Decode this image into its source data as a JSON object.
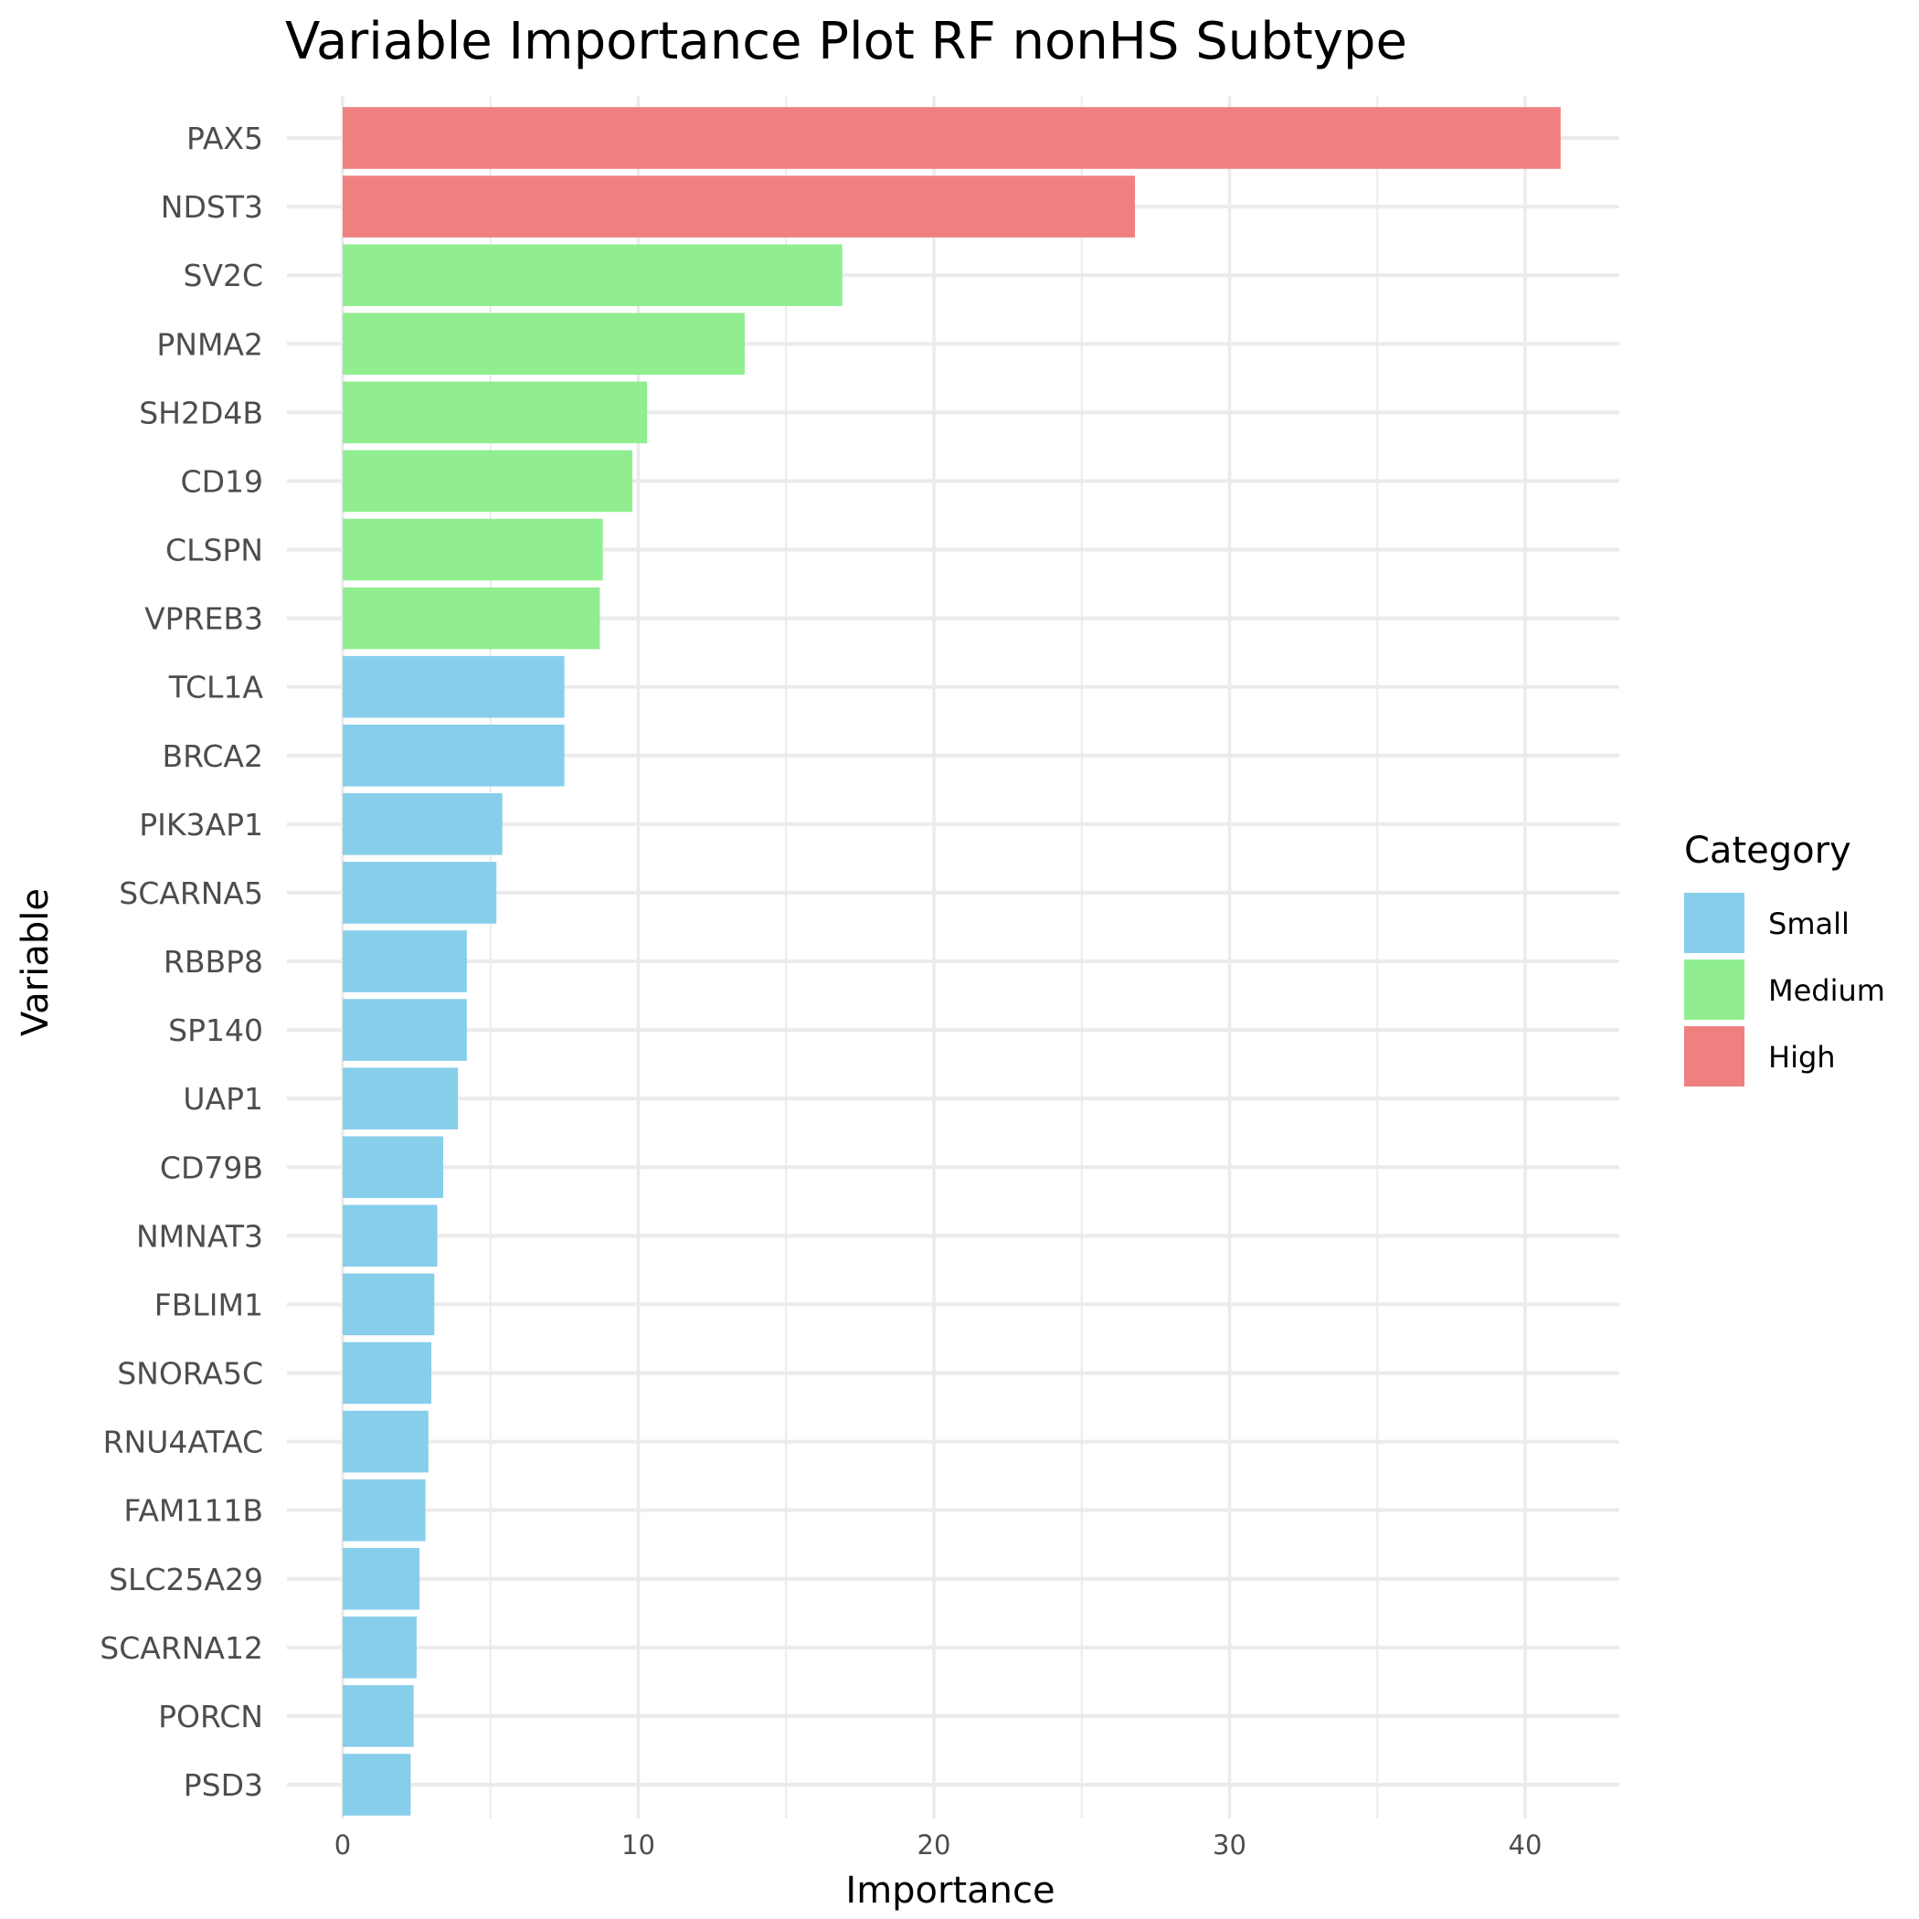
{
  "chart_data": {
    "type": "bar",
    "orientation": "horizontal",
    "title": "Variable Importance Plot RF nonHS Subtype",
    "xlabel": "Importance",
    "ylabel": "Variable",
    "xlim": [
      0,
      43
    ],
    "x_ticks": [
      0,
      10,
      20,
      30,
      40
    ],
    "grid": true,
    "legend": {
      "title": "Category",
      "placement": "right",
      "entries": [
        {
          "label": "Small",
          "color": "#87ceeb"
        },
        {
          "label": "Medium",
          "color": "#90ee90"
        },
        {
          "label": "High",
          "color": "#f08080"
        }
      ]
    },
    "bars": [
      {
        "variable": "PAX5",
        "importance": 41.2,
        "category": "High"
      },
      {
        "variable": "NDST3",
        "importance": 26.8,
        "category": "High"
      },
      {
        "variable": "SV2C",
        "importance": 16.9,
        "category": "Medium"
      },
      {
        "variable": "PNMA2",
        "importance": 13.6,
        "category": "Medium"
      },
      {
        "variable": "SH2D4B",
        "importance": 10.3,
        "category": "Medium"
      },
      {
        "variable": "CD19",
        "importance": 9.8,
        "category": "Medium"
      },
      {
        "variable": "CLSPN",
        "importance": 8.8,
        "category": "Medium"
      },
      {
        "variable": "VPREB3",
        "importance": 8.7,
        "category": "Medium"
      },
      {
        "variable": "TCL1A",
        "importance": 7.5,
        "category": "Small"
      },
      {
        "variable": "BRCA2",
        "importance": 7.5,
        "category": "Small"
      },
      {
        "variable": "PIK3AP1",
        "importance": 5.4,
        "category": "Small"
      },
      {
        "variable": "SCARNA5",
        "importance": 5.2,
        "category": "Small"
      },
      {
        "variable": "RBBP8",
        "importance": 4.2,
        "category": "Small"
      },
      {
        "variable": "SP140",
        "importance": 4.2,
        "category": "Small"
      },
      {
        "variable": "UAP1",
        "importance": 3.9,
        "category": "Small"
      },
      {
        "variable": "CD79B",
        "importance": 3.4,
        "category": "Small"
      },
      {
        "variable": "NMNAT3",
        "importance": 3.2,
        "category": "Small"
      },
      {
        "variable": "FBLIM1",
        "importance": 3.1,
        "category": "Small"
      },
      {
        "variable": "SNORA5C",
        "importance": 3.0,
        "category": "Small"
      },
      {
        "variable": "RNU4ATAC",
        "importance": 2.9,
        "category": "Small"
      },
      {
        "variable": "FAM111B",
        "importance": 2.8,
        "category": "Small"
      },
      {
        "variable": "SLC25A29",
        "importance": 2.6,
        "category": "Small"
      },
      {
        "variable": "SCARNA12",
        "importance": 2.5,
        "category": "Small"
      },
      {
        "variable": "PORCN",
        "importance": 2.4,
        "category": "Small"
      },
      {
        "variable": "PSD3",
        "importance": 2.3,
        "category": "Small"
      }
    ]
  }
}
